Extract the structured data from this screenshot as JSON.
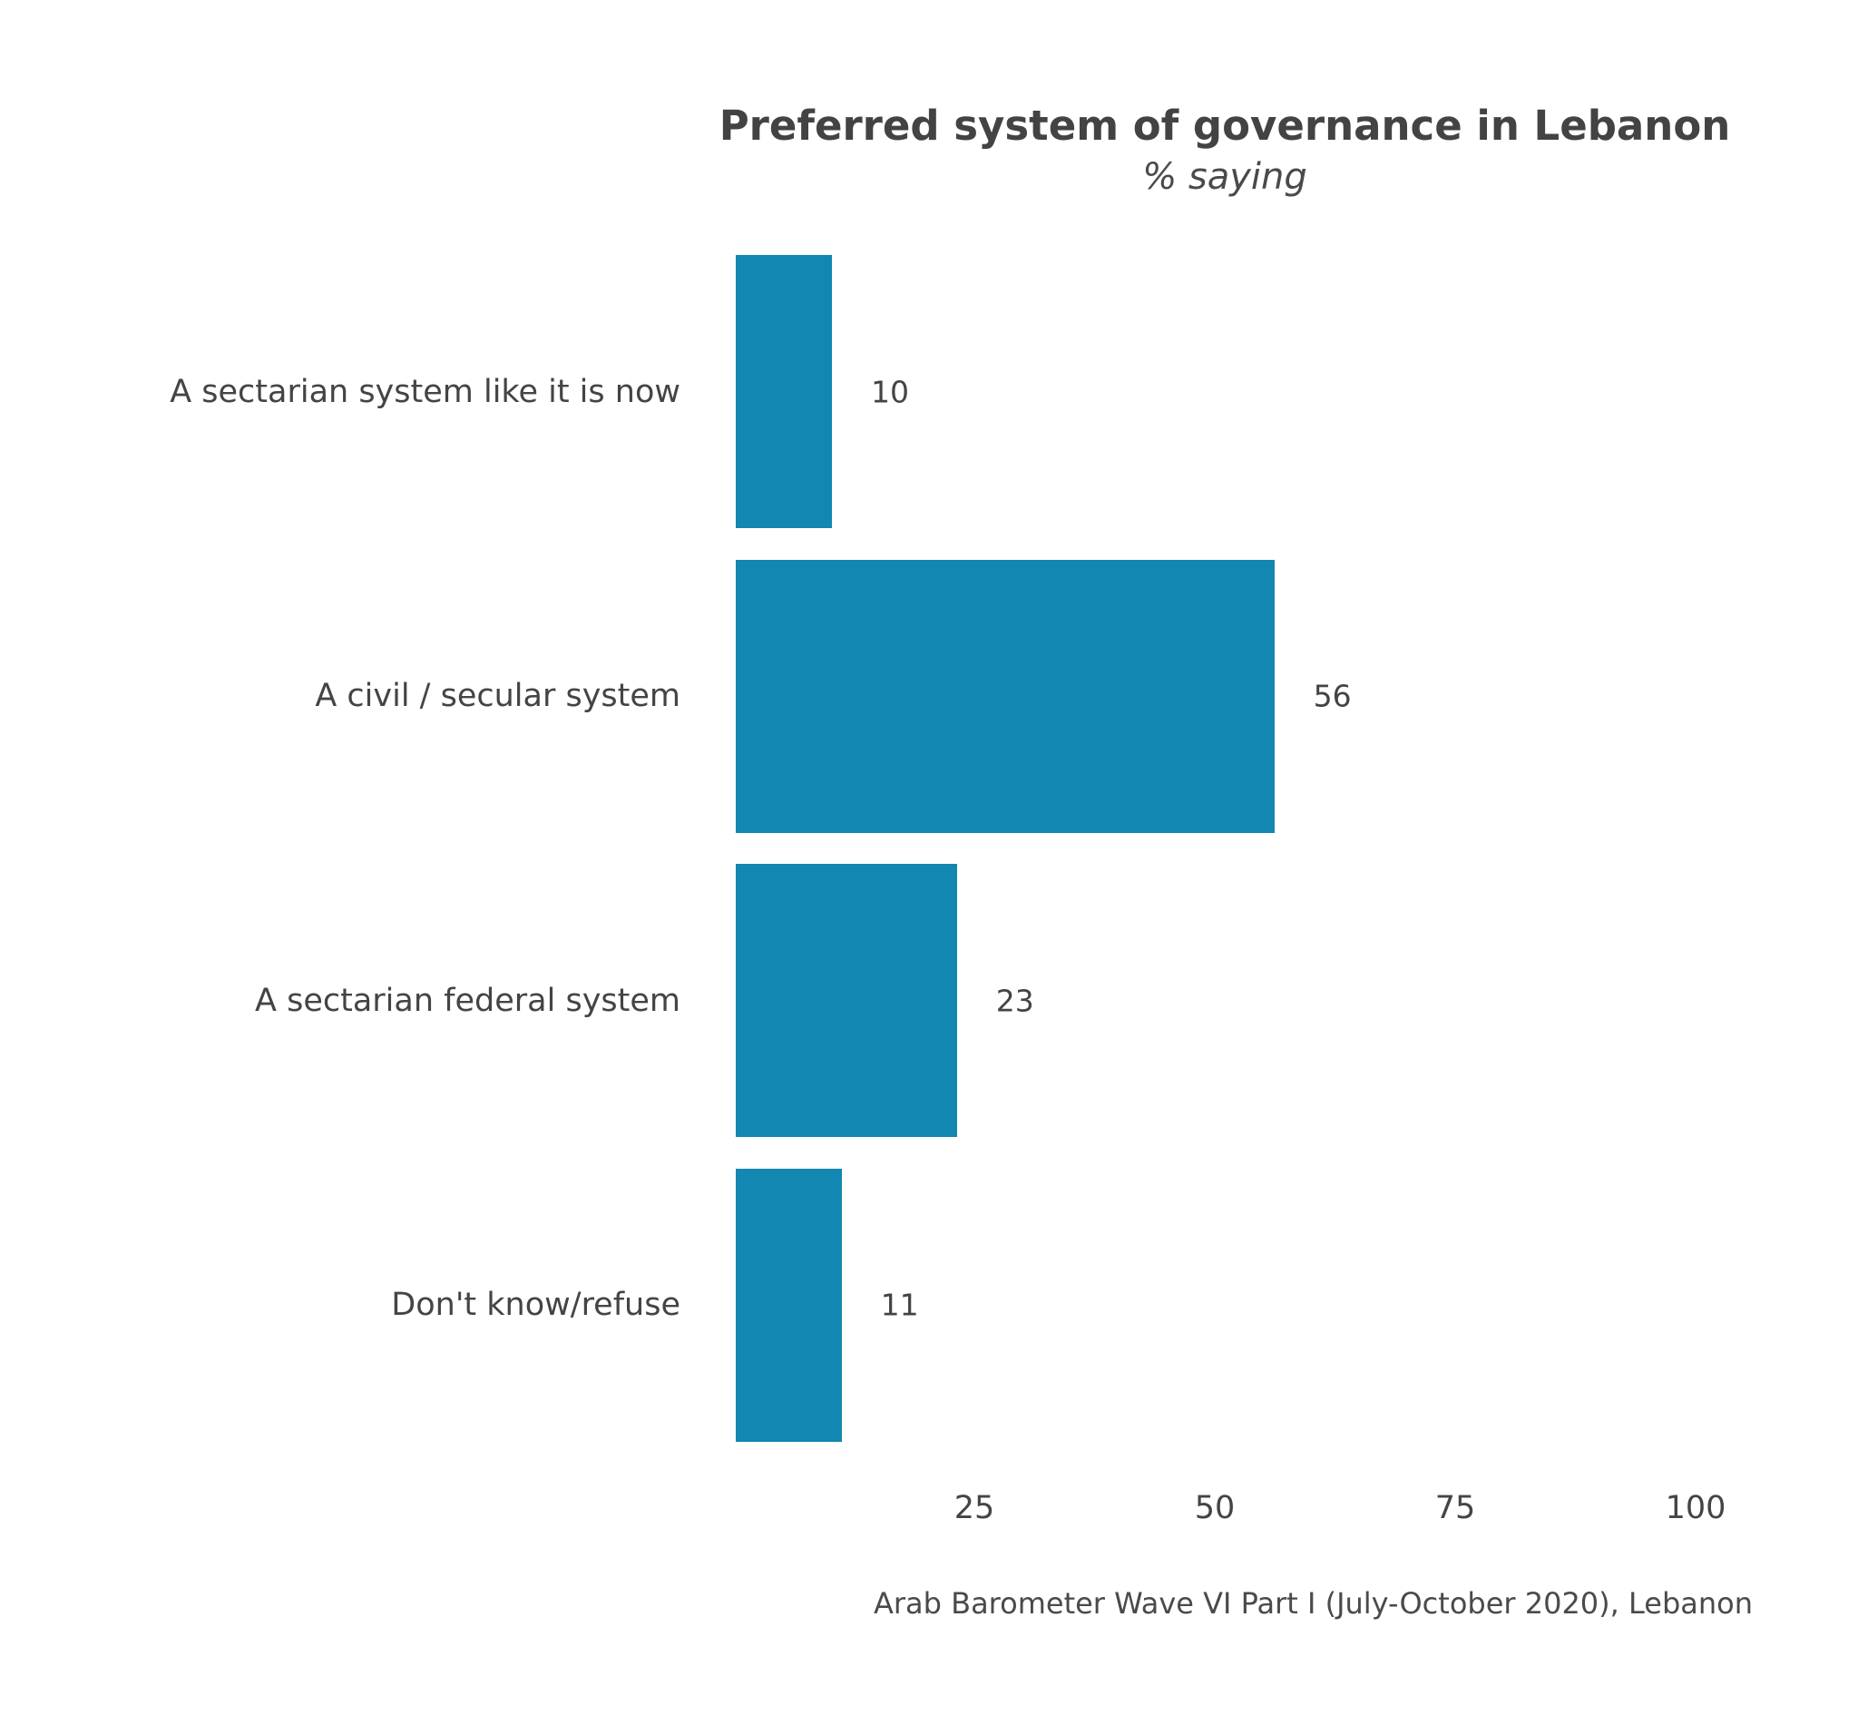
{
  "chart": {
    "title": "Preferred system of governance in Lebanon",
    "subtitle": "% saying",
    "caption": "Arab Barometer Wave VI Part I (July-October 2020), Lebanon",
    "bar_color": "#1287b1",
    "rows": [
      {
        "label": "A sectarian system like it is now",
        "value": 10,
        "value_label": "10"
      },
      {
        "label": "A civil / secular system",
        "value": 56,
        "value_label": "56"
      },
      {
        "label": "A sectarian federal system",
        "value": 23,
        "value_label": "23"
      },
      {
        "label": "Don't know/refuse",
        "value": 11,
        "value_label": "11"
      }
    ],
    "ticks": [
      "25",
      "50",
      "75",
      "100"
    ]
  },
  "chart_data": {
    "type": "bar",
    "orientation": "horizontal",
    "title": "Preferred system of governance in Lebanon",
    "subtitle": "% saying",
    "categories": [
      "A sectarian system like it is now",
      "A civil / secular system",
      "A sectarian federal system",
      "Don't know/refuse"
    ],
    "values": [
      10,
      56,
      23,
      11
    ],
    "xlabel": "",
    "ylabel": "",
    "xlim": [
      0,
      100
    ],
    "xticks": [
      25,
      50,
      75,
      100
    ],
    "grid": false,
    "legend": null,
    "data_labels": true,
    "caption": "Arab Barometer Wave VI Part I (July-October 2020), Lebanon"
  }
}
